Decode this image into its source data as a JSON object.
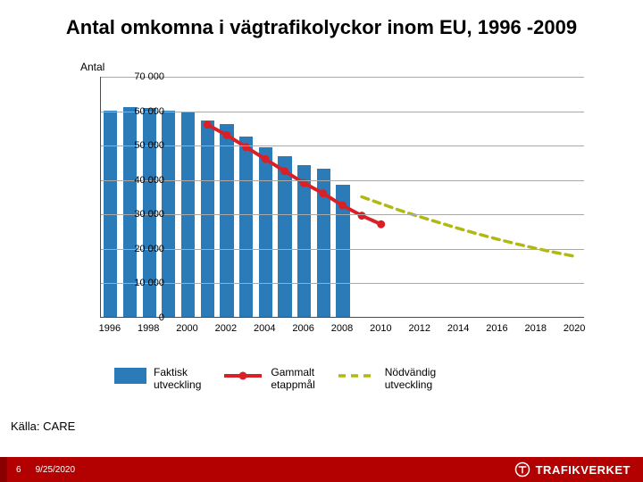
{
  "title": "Antal omkomna i vägtrafikolyckor inom EU, 1996 -2009",
  "y_axis_label": "Antal",
  "source": "Källa: CARE",
  "footer": {
    "page": "6",
    "date": "9/25/2020"
  },
  "brand": {
    "text": "TRAFIKVERKET"
  },
  "colors": {
    "bar": "#2a7bb8",
    "line_old_target": "#d92027",
    "line_required": "#b0b914",
    "grid": "#a9a9a9",
    "axis": "#4a4a4a",
    "footer_bg": "#b30000",
    "footer_accent": "#8a0000",
    "brand_logo": "#ffffff",
    "text": "#000000"
  },
  "chart": {
    "type": "bar+line",
    "ylim": [
      0,
      70000
    ],
    "ytick_step": 10000,
    "y_ticks": [
      {
        "v": 0,
        "label": "0"
      },
      {
        "v": 10000,
        "label": "10 000"
      },
      {
        "v": 20000,
        "label": "20 000"
      },
      {
        "v": 30000,
        "label": "30 000"
      },
      {
        "v": 40000,
        "label": "40 000"
      },
      {
        "v": 50000,
        "label": "50 000"
      },
      {
        "v": 60000,
        "label": "60 000"
      },
      {
        "v": 70000,
        "label": "70 000"
      }
    ],
    "x_domain": [
      1996,
      2020
    ],
    "x_ticks": [
      1996,
      1998,
      2000,
      2002,
      2004,
      2006,
      2008,
      2010,
      2012,
      2014,
      2016,
      2018,
      2020
    ],
    "bar_years": [
      1996,
      1997,
      1998,
      1999,
      2000,
      2001,
      2002,
      2003,
      2004,
      2005,
      2006,
      2007,
      2008
    ],
    "bar_values": [
      60000,
      61000,
      60800,
      60000,
      59600,
      57000,
      56000,
      52500,
      49200,
      46800,
      44000,
      43000,
      38500
    ],
    "bar_width_rel": 0.7,
    "line_old_target": {
      "years": [
        2001,
        2002,
        2003,
        2004,
        2005,
        2006,
        2007,
        2008,
        2009,
        2010
      ],
      "values": [
        56000,
        53000,
        49500,
        46000,
        42500,
        39000,
        36000,
        32500,
        29500,
        27000
      ],
      "line_width": 4,
      "marker_radius": 4.5
    },
    "line_required": {
      "years": [
        2009,
        2010,
        2011,
        2012,
        2013,
        2014,
        2015,
        2016,
        2017,
        2018,
        2019,
        2020
      ],
      "values": [
        35000,
        33000,
        31000,
        29200,
        27500,
        25800,
        24200,
        22700,
        21300,
        20000,
        18800,
        17700
      ],
      "line_width": 3.5,
      "dash": "8,6"
    }
  },
  "legend": {
    "bar": "Faktisk\nutveckling",
    "old_target": "Gammalt\netappmål",
    "required": "Nödvändig\nutveckling"
  }
}
